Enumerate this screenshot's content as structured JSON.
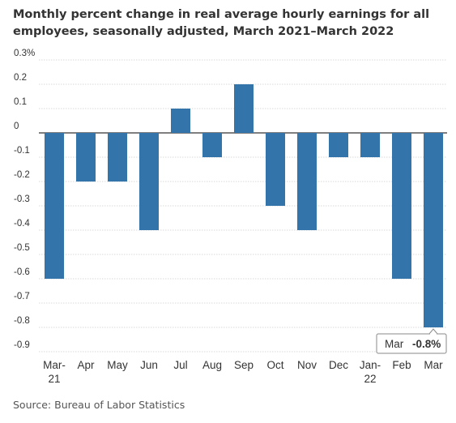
{
  "title": "Monthly percent change in real average hourly earnings for all employees, seasonally adjusted, March 2021–March 2022",
  "source": "Source: Bureau of Labor Statistics",
  "colors": {
    "bar": "#3375ab",
    "gridline": "#d9d9d9",
    "zero_line": "#333333",
    "text": "#333333",
    "callout_border": "#8a8a8a"
  },
  "chart_data": {
    "type": "bar",
    "title": "Monthly percent change in real average hourly earnings for all employees, seasonally adjusted, March 2021–March 2022",
    "categories": [
      [
        "Mar-",
        "21"
      ],
      [
        "Apr"
      ],
      [
        "May"
      ],
      [
        "Jun"
      ],
      [
        "Jul"
      ],
      [
        "Aug"
      ],
      [
        "Sep"
      ],
      [
        "Oct"
      ],
      [
        "Nov"
      ],
      [
        "Dec"
      ],
      [
        "Jan-",
        "22"
      ],
      [
        "Feb"
      ],
      [
        "Mar"
      ]
    ],
    "values": [
      -0.6,
      -0.2,
      -0.2,
      -0.4,
      0.1,
      -0.1,
      0.2,
      -0.3,
      -0.4,
      -0.1,
      -0.1,
      -0.6,
      -0.8
    ],
    "ylim": [
      -0.9,
      0.3
    ],
    "yticks": [
      {
        "value": 0.3,
        "label": "0.3%"
      },
      {
        "value": 0.2,
        "label": "0.2"
      },
      {
        "value": 0.1,
        "label": "0.1"
      },
      {
        "value": 0,
        "label": "0"
      },
      {
        "value": -0.1,
        "label": "-0.1"
      },
      {
        "value": -0.2,
        "label": "-0.2"
      },
      {
        "value": -0.3,
        "label": "-0.3"
      },
      {
        "value": -0.4,
        "label": "-0.4"
      },
      {
        "value": -0.5,
        "label": "-0.5"
      },
      {
        "value": -0.6,
        "label": "-0.6"
      },
      {
        "value": -0.7,
        "label": "-0.7"
      },
      {
        "value": -0.8,
        "label": "-0.8"
      },
      {
        "value": -0.9,
        "label": "-0.9"
      }
    ],
    "grid": true,
    "xlabel": "",
    "ylabel": "",
    "callout": {
      "category_index": 12,
      "label": "Mar",
      "value": "-0.8%"
    }
  }
}
